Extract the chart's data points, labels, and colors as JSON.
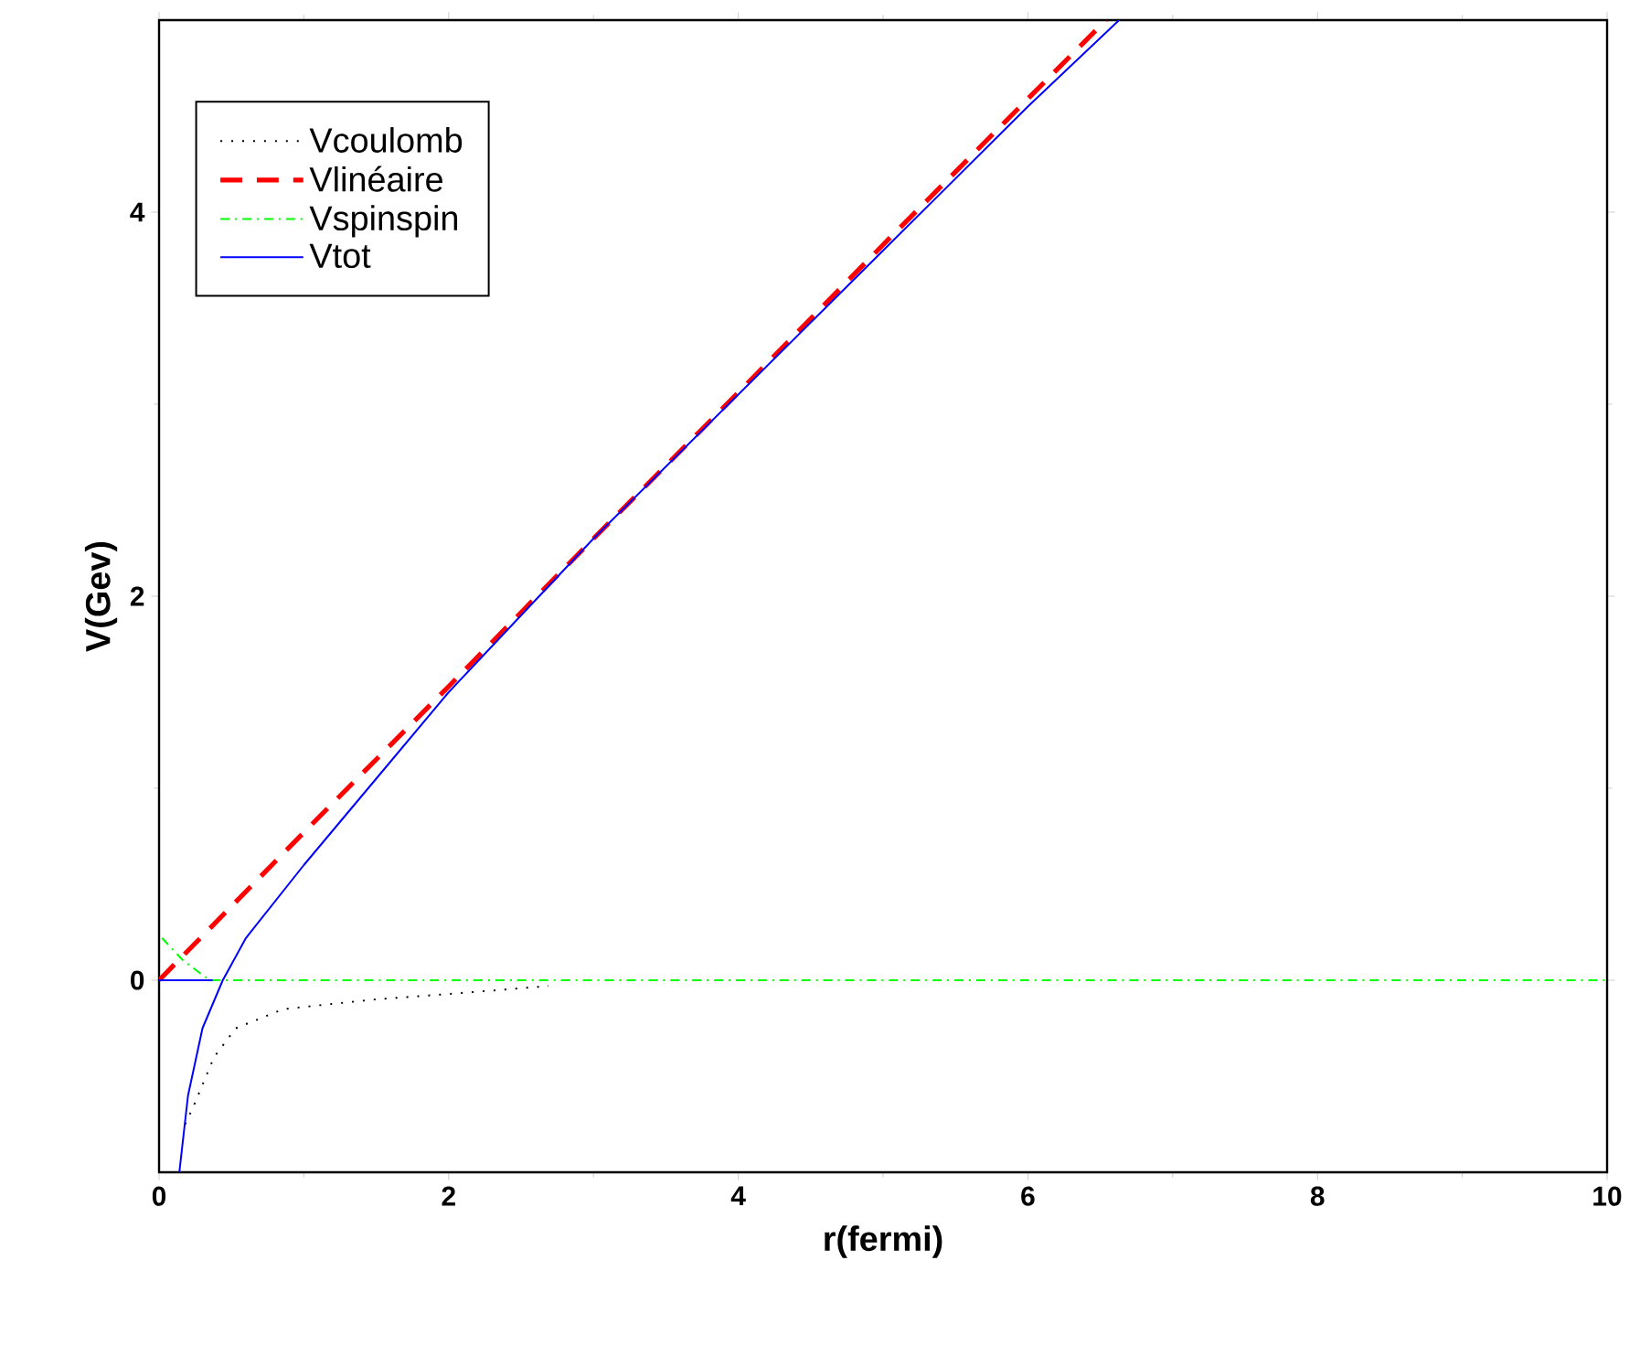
{
  "chart_data": {
    "type": "line",
    "xlabel": "r(fermi)",
    "ylabel": "V(Gev)",
    "xlim": [
      0,
      10
    ],
    "ylim": [
      -1,
      5
    ],
    "xticks": [
      0,
      2,
      4,
      6,
      8,
      10
    ],
    "yticks": [
      0,
      2,
      4
    ],
    "grid": false,
    "legend": "top left",
    "series": [
      {
        "name": "Vcoulomb",
        "color": "#000000",
        "line_style": "dotted",
        "x": [
          0.18,
          0.23,
          0.38,
          0.53,
          0.86,
          1.49,
          2.03,
          2.69
        ],
        "values": [
          -0.75,
          -0.67,
          -0.4,
          -0.25,
          -0.15,
          -0.1,
          -0.07,
          -0.03
        ]
      },
      {
        "name": "Vlinéaire",
        "color": "#ff0000",
        "line_style": "dashed",
        "x": [
          0,
          1,
          2,
          3,
          4,
          5,
          6,
          6.54
        ],
        "values": [
          0,
          0.77,
          1.53,
          2.3,
          3.06,
          3.83,
          4.59,
          5
        ]
      },
      {
        "name": "Vspinspin",
        "color": "#00ff00",
        "line_style": "dashdot",
        "x": [
          0.02,
          0.17,
          0.35,
          10
        ],
        "values": [
          0.22,
          0.1,
          0,
          0
        ]
      },
      {
        "name": "Vtot",
        "color": "#0000ff",
        "line_style": "solid",
        "x": [
          0.14,
          0.2,
          0.3,
          0.44,
          0.6,
          1,
          1.5,
          2,
          3,
          4,
          5,
          6,
          6.63
        ],
        "values": [
          -1,
          -0.6,
          -0.25,
          0,
          0.22,
          0.6,
          1.05,
          1.5,
          2.3,
          3.05,
          3.8,
          4.55,
          5
        ]
      },
      {
        "color": "#0000ff",
        "line_style": "solid",
        "x": [
          0,
          0.37
        ],
        "values": [
          0,
          0
        ]
      }
    ]
  }
}
